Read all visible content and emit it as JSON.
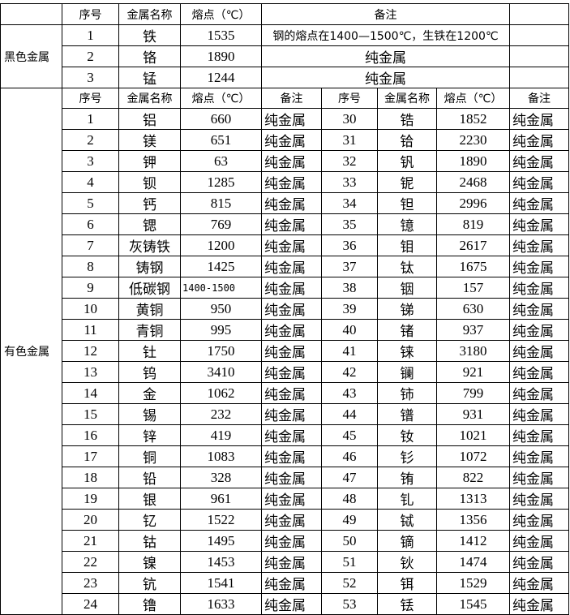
{
  "headers": {
    "index": "序号",
    "name": "金属名称",
    "melting_point": "熔点（℃）",
    "remark": "备注"
  },
  "ferrous": {
    "category": "黑色金属",
    "rows": [
      {
        "index": "1",
        "name": "铁",
        "mp": "1535",
        "remark": "钢的熔点在1400—1500℃，生铁在1200℃"
      },
      {
        "index": "2",
        "name": "铬",
        "mp": "1890",
        "remark": "纯金属"
      },
      {
        "index": "3",
        "name": "锰",
        "mp": "1244",
        "remark": "纯金属"
      }
    ]
  },
  "nonferrous": {
    "category": "有色金属",
    "left": [
      {
        "index": "1",
        "name": "铝",
        "mp": "660",
        "remark": "纯金属"
      },
      {
        "index": "2",
        "name": "镁",
        "mp": "651",
        "remark": "纯金属"
      },
      {
        "index": "3",
        "name": "钾",
        "mp": "63",
        "remark": "纯金属"
      },
      {
        "index": "4",
        "name": "钡",
        "mp": "1285",
        "remark": "纯金属"
      },
      {
        "index": "5",
        "name": "钙",
        "mp": "815",
        "remark": "纯金属"
      },
      {
        "index": "6",
        "name": "锶",
        "mp": "769",
        "remark": "纯金属"
      },
      {
        "index": "7",
        "name": "灰铸铁",
        "mp": "1200",
        "remark": "纯金属"
      },
      {
        "index": "8",
        "name": "铸钢",
        "mp": "1425",
        "remark": "纯金属"
      },
      {
        "index": "9",
        "name": "低碳钢",
        "mp": "1400-1500",
        "remark": "纯金属"
      },
      {
        "index": "10",
        "name": "黄铜",
        "mp": "950",
        "remark": "纯金属"
      },
      {
        "index": "11",
        "name": "青铜",
        "mp": "995",
        "remark": "纯金属"
      },
      {
        "index": "12",
        "name": "钍",
        "mp": "1750",
        "remark": "纯金属"
      },
      {
        "index": "13",
        "name": "钨",
        "mp": "3410",
        "remark": "纯金属"
      },
      {
        "index": "14",
        "name": "金",
        "mp": "1062",
        "remark": "纯金属"
      },
      {
        "index": "15",
        "name": "锡",
        "mp": "232",
        "remark": "纯金属"
      },
      {
        "index": "16",
        "name": "锌",
        "mp": "419",
        "remark": "纯金属"
      },
      {
        "index": "17",
        "name": "铜",
        "mp": "1083",
        "remark": "纯金属"
      },
      {
        "index": "18",
        "name": "铅",
        "mp": "328",
        "remark": "纯金属"
      },
      {
        "index": "19",
        "name": "银",
        "mp": "961",
        "remark": "纯金属"
      },
      {
        "index": "20",
        "name": "钇",
        "mp": "1522",
        "remark": "纯金属"
      },
      {
        "index": "21",
        "name": "钴",
        "mp": "1495",
        "remark": "纯金属"
      },
      {
        "index": "22",
        "name": "镍",
        "mp": "1453",
        "remark": "纯金属"
      },
      {
        "index": "23",
        "name": "钪",
        "mp": "1541",
        "remark": "纯金属"
      },
      {
        "index": "24",
        "name": "镥",
        "mp": "1633",
        "remark": "纯金属"
      }
    ],
    "right": [
      {
        "index": "30",
        "name": "锆",
        "mp": "1852",
        "remark": "纯金属"
      },
      {
        "index": "31",
        "name": "铪",
        "mp": "2230",
        "remark": "纯金属"
      },
      {
        "index": "32",
        "name": "钒",
        "mp": "1890",
        "remark": "纯金属"
      },
      {
        "index": "33",
        "name": "铌",
        "mp": "2468",
        "remark": "纯金属"
      },
      {
        "index": "34",
        "name": "钽",
        "mp": "2996",
        "remark": "纯金属"
      },
      {
        "index": "35",
        "name": "镱",
        "mp": "819",
        "remark": "纯金属"
      },
      {
        "index": "36",
        "name": "钼",
        "mp": "2617",
        "remark": "纯金属"
      },
      {
        "index": "37",
        "name": "钛",
        "mp": "1675",
        "remark": "纯金属"
      },
      {
        "index": "38",
        "name": "铟",
        "mp": "157",
        "remark": "纯金属"
      },
      {
        "index": "39",
        "name": "锑",
        "mp": "630",
        "remark": "纯金属"
      },
      {
        "index": "40",
        "name": "锗",
        "mp": "937",
        "remark": "纯金属"
      },
      {
        "index": "41",
        "name": "铼",
        "mp": "3180",
        "remark": "纯金属"
      },
      {
        "index": "42",
        "name": "镧",
        "mp": "921",
        "remark": "纯金属"
      },
      {
        "index": "43",
        "name": "铈",
        "mp": "799",
        "remark": "纯金属"
      },
      {
        "index": "44",
        "name": "镨",
        "mp": "931",
        "remark": "纯金属"
      },
      {
        "index": "45",
        "name": "钕",
        "mp": "1021",
        "remark": "纯金属"
      },
      {
        "index": "46",
        "name": "钐",
        "mp": "1072",
        "remark": "纯金属"
      },
      {
        "index": "47",
        "name": "铕",
        "mp": "822",
        "remark": "纯金属"
      },
      {
        "index": "48",
        "name": "钆",
        "mp": "1313",
        "remark": "纯金属"
      },
      {
        "index": "49",
        "name": "铽",
        "mp": "1356",
        "remark": "纯金属"
      },
      {
        "index": "50",
        "name": "镝",
        "mp": "1412",
        "remark": "纯金属"
      },
      {
        "index": "51",
        "name": "钬",
        "mp": "1474",
        "remark": "纯金属"
      },
      {
        "index": "52",
        "name": "铒",
        "mp": "1529",
        "remark": "纯金属"
      },
      {
        "index": "53",
        "name": "铥",
        "mp": "1545",
        "remark": "纯金属"
      }
    ]
  }
}
